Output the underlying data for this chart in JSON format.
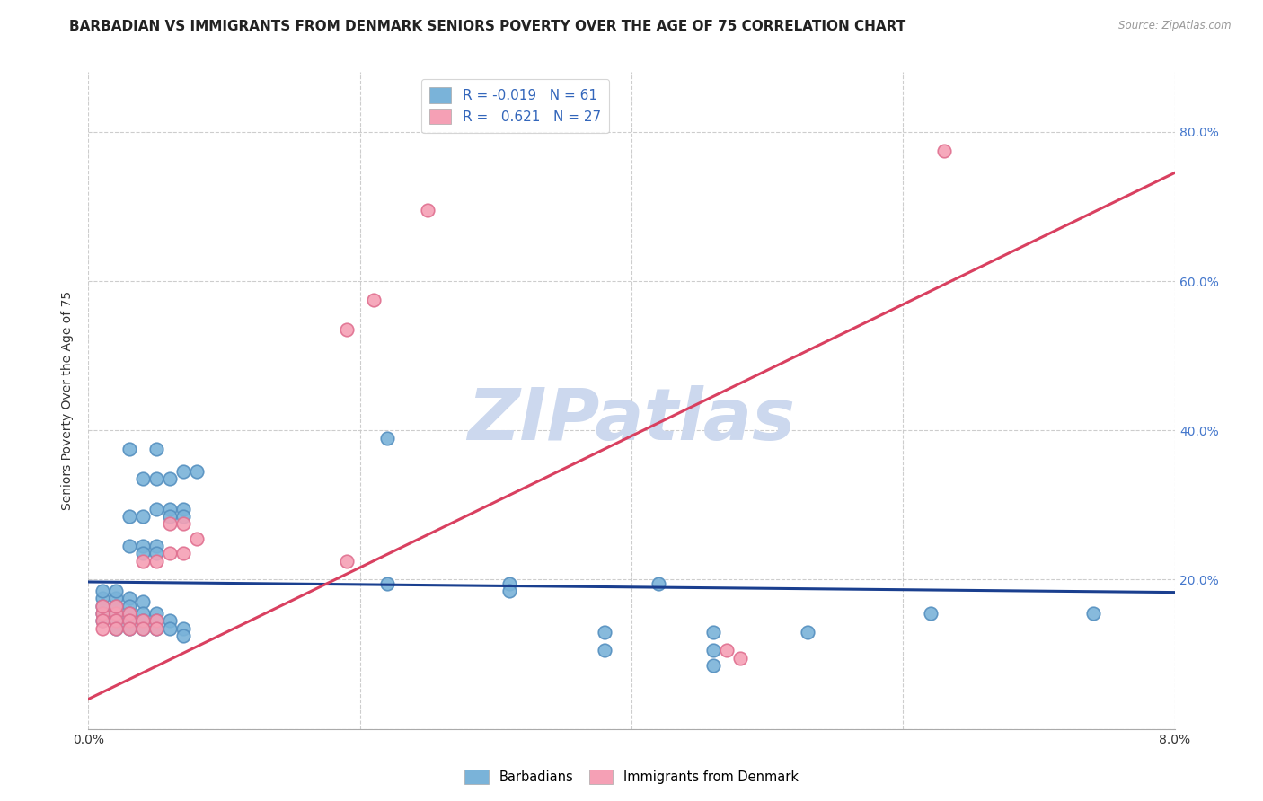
{
  "title": "BARBADIAN VS IMMIGRANTS FROM DENMARK SENIORS POVERTY OVER THE AGE OF 75 CORRELATION CHART",
  "source": "Source: ZipAtlas.com",
  "ylabel": "Seniors Poverty Over the Age of 75",
  "x_min": 0.0,
  "x_max": 0.08,
  "y_min": 0.0,
  "y_max": 0.88,
  "x_ticks": [
    0.0,
    0.02,
    0.04,
    0.06,
    0.08
  ],
  "x_tick_labels": [
    "0.0%",
    "",
    "",
    "",
    "8.0%"
  ],
  "y_ticks": [
    0.0,
    0.2,
    0.4,
    0.6,
    0.8
  ],
  "y_tick_labels": [
    "",
    "20.0%",
    "40.0%",
    "60.0%",
    "80.0%"
  ],
  "legend_line1": "R = -0.019   N = 61",
  "legend_line2": "R =   0.621   N = 27",
  "barbadian_scatter": [
    [
      0.002,
      0.175
    ],
    [
      0.003,
      0.175
    ],
    [
      0.003,
      0.165
    ],
    [
      0.004,
      0.17
    ],
    [
      0.002,
      0.155
    ],
    [
      0.003,
      0.155
    ],
    [
      0.004,
      0.155
    ],
    [
      0.005,
      0.155
    ],
    [
      0.004,
      0.145
    ],
    [
      0.005,
      0.145
    ],
    [
      0.005,
      0.135
    ],
    [
      0.006,
      0.145
    ],
    [
      0.006,
      0.135
    ],
    [
      0.007,
      0.135
    ],
    [
      0.007,
      0.125
    ],
    [
      0.001,
      0.175
    ],
    [
      0.001,
      0.165
    ],
    [
      0.001,
      0.155
    ],
    [
      0.001,
      0.145
    ],
    [
      0.002,
      0.165
    ],
    [
      0.002,
      0.145
    ],
    [
      0.002,
      0.135
    ],
    [
      0.003,
      0.145
    ],
    [
      0.003,
      0.135
    ],
    [
      0.004,
      0.135
    ],
    [
      0.001,
      0.185
    ],
    [
      0.002,
      0.185
    ],
    [
      0.003,
      0.245
    ],
    [
      0.004,
      0.245
    ],
    [
      0.004,
      0.235
    ],
    [
      0.005,
      0.245
    ],
    [
      0.005,
      0.235
    ],
    [
      0.003,
      0.285
    ],
    [
      0.004,
      0.285
    ],
    [
      0.005,
      0.295
    ],
    [
      0.006,
      0.295
    ],
    [
      0.006,
      0.285
    ],
    [
      0.007,
      0.295
    ],
    [
      0.007,
      0.285
    ],
    [
      0.004,
      0.335
    ],
    [
      0.005,
      0.335
    ],
    [
      0.006,
      0.335
    ],
    [
      0.007,
      0.345
    ],
    [
      0.008,
      0.345
    ],
    [
      0.003,
      0.375
    ],
    [
      0.005,
      0.375
    ],
    [
      0.022,
      0.39
    ],
    [
      0.022,
      0.195
    ],
    [
      0.031,
      0.195
    ],
    [
      0.031,
      0.185
    ],
    [
      0.038,
      0.13
    ],
    [
      0.038,
      0.105
    ],
    [
      0.042,
      0.195
    ],
    [
      0.046,
      0.13
    ],
    [
      0.046,
      0.085
    ],
    [
      0.046,
      0.105
    ],
    [
      0.053,
      0.13
    ],
    [
      0.062,
      0.155
    ],
    [
      0.074,
      0.155
    ]
  ],
  "denmark_scatter": [
    [
      0.001,
      0.155
    ],
    [
      0.001,
      0.145
    ],
    [
      0.001,
      0.135
    ],
    [
      0.002,
      0.155
    ],
    [
      0.002,
      0.145
    ],
    [
      0.002,
      0.135
    ],
    [
      0.003,
      0.155
    ],
    [
      0.003,
      0.145
    ],
    [
      0.003,
      0.135
    ],
    [
      0.004,
      0.145
    ],
    [
      0.004,
      0.135
    ],
    [
      0.005,
      0.145
    ],
    [
      0.005,
      0.135
    ],
    [
      0.001,
      0.165
    ],
    [
      0.002,
      0.165
    ],
    [
      0.004,
      0.225
    ],
    [
      0.005,
      0.225
    ],
    [
      0.006,
      0.235
    ],
    [
      0.007,
      0.235
    ],
    [
      0.006,
      0.275
    ],
    [
      0.007,
      0.275
    ],
    [
      0.008,
      0.255
    ],
    [
      0.019,
      0.225
    ],
    [
      0.019,
      0.535
    ],
    [
      0.021,
      0.575
    ],
    [
      0.025,
      0.695
    ],
    [
      0.047,
      0.105
    ],
    [
      0.048,
      0.095
    ],
    [
      0.063,
      0.775
    ]
  ],
  "blue_line_x": [
    0.0,
    0.08
  ],
  "blue_line_y": [
    0.197,
    0.183
  ],
  "pink_line_x": [
    0.0,
    0.08
  ],
  "pink_line_y": [
    0.04,
    0.745
  ],
  "scatter_color_blue": "#7ab3d9",
  "scatter_color_pink": "#f5a0b5",
  "scatter_edge_blue": "#5590c0",
  "scatter_edge_pink": "#e07090",
  "line_color_blue": "#1a3f8f",
  "line_color_pink": "#d94060",
  "grid_color": "#c8c8c8",
  "bg_color": "#ffffff",
  "watermark_color": "#ccd8ee",
  "title_fontsize": 11,
  "axis_label_fontsize": 10,
  "tick_fontsize": 10,
  "legend_fontsize": 11
}
